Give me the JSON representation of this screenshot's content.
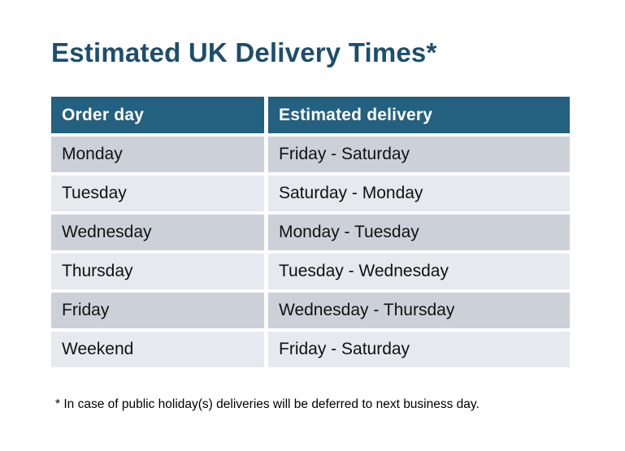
{
  "title": {
    "text": "Estimated UK Delivery Times*"
  },
  "colors": {
    "page_bg": "#ffffff",
    "title_color": "#1d4e6b",
    "header_bg": "#24607f",
    "header_text": "#ffffff",
    "row_odd": "#ccd1d9",
    "row_even": "#e6e9ed",
    "cell_text": "#111111"
  },
  "table": {
    "header": {
      "columns": [
        "Order day",
        "Estimated delivery"
      ]
    },
    "rows": [
      {
        "order_day": "Monday",
        "estimated_delivery": "Friday - Saturday"
      },
      {
        "order_day": "Tuesday",
        "estimated_delivery": "Saturday - Monday"
      },
      {
        "order_day": "Wednesday",
        "estimated_delivery": "Monday - Tuesday"
      },
      {
        "order_day": "Thursday",
        "estimated_delivery": "Tuesday - Wednesday"
      },
      {
        "order_day": "Friday",
        "estimated_delivery": "Wednesday - Thursday"
      },
      {
        "order_day": "Weekend",
        "estimated_delivery": "Friday - Saturday"
      }
    ]
  },
  "footnote": {
    "text": "* In case of public holiday(s) deliveries will be deferred to next business day."
  }
}
